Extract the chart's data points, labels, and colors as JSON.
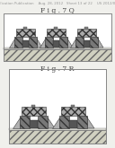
{
  "bg_color": "#f0f0ec",
  "header_text": "Patent Application Publication    Aug. 28, 2012   Sheet 13 of 22    US 2012/0214441 A1",
  "header_fontsize": 2.8,
  "fig_labels": [
    "F i g . 7 Q",
    "F i g . 7 R"
  ],
  "fig_label_fontsize": 5.5,
  "panel_bg": "#ffffff"
}
